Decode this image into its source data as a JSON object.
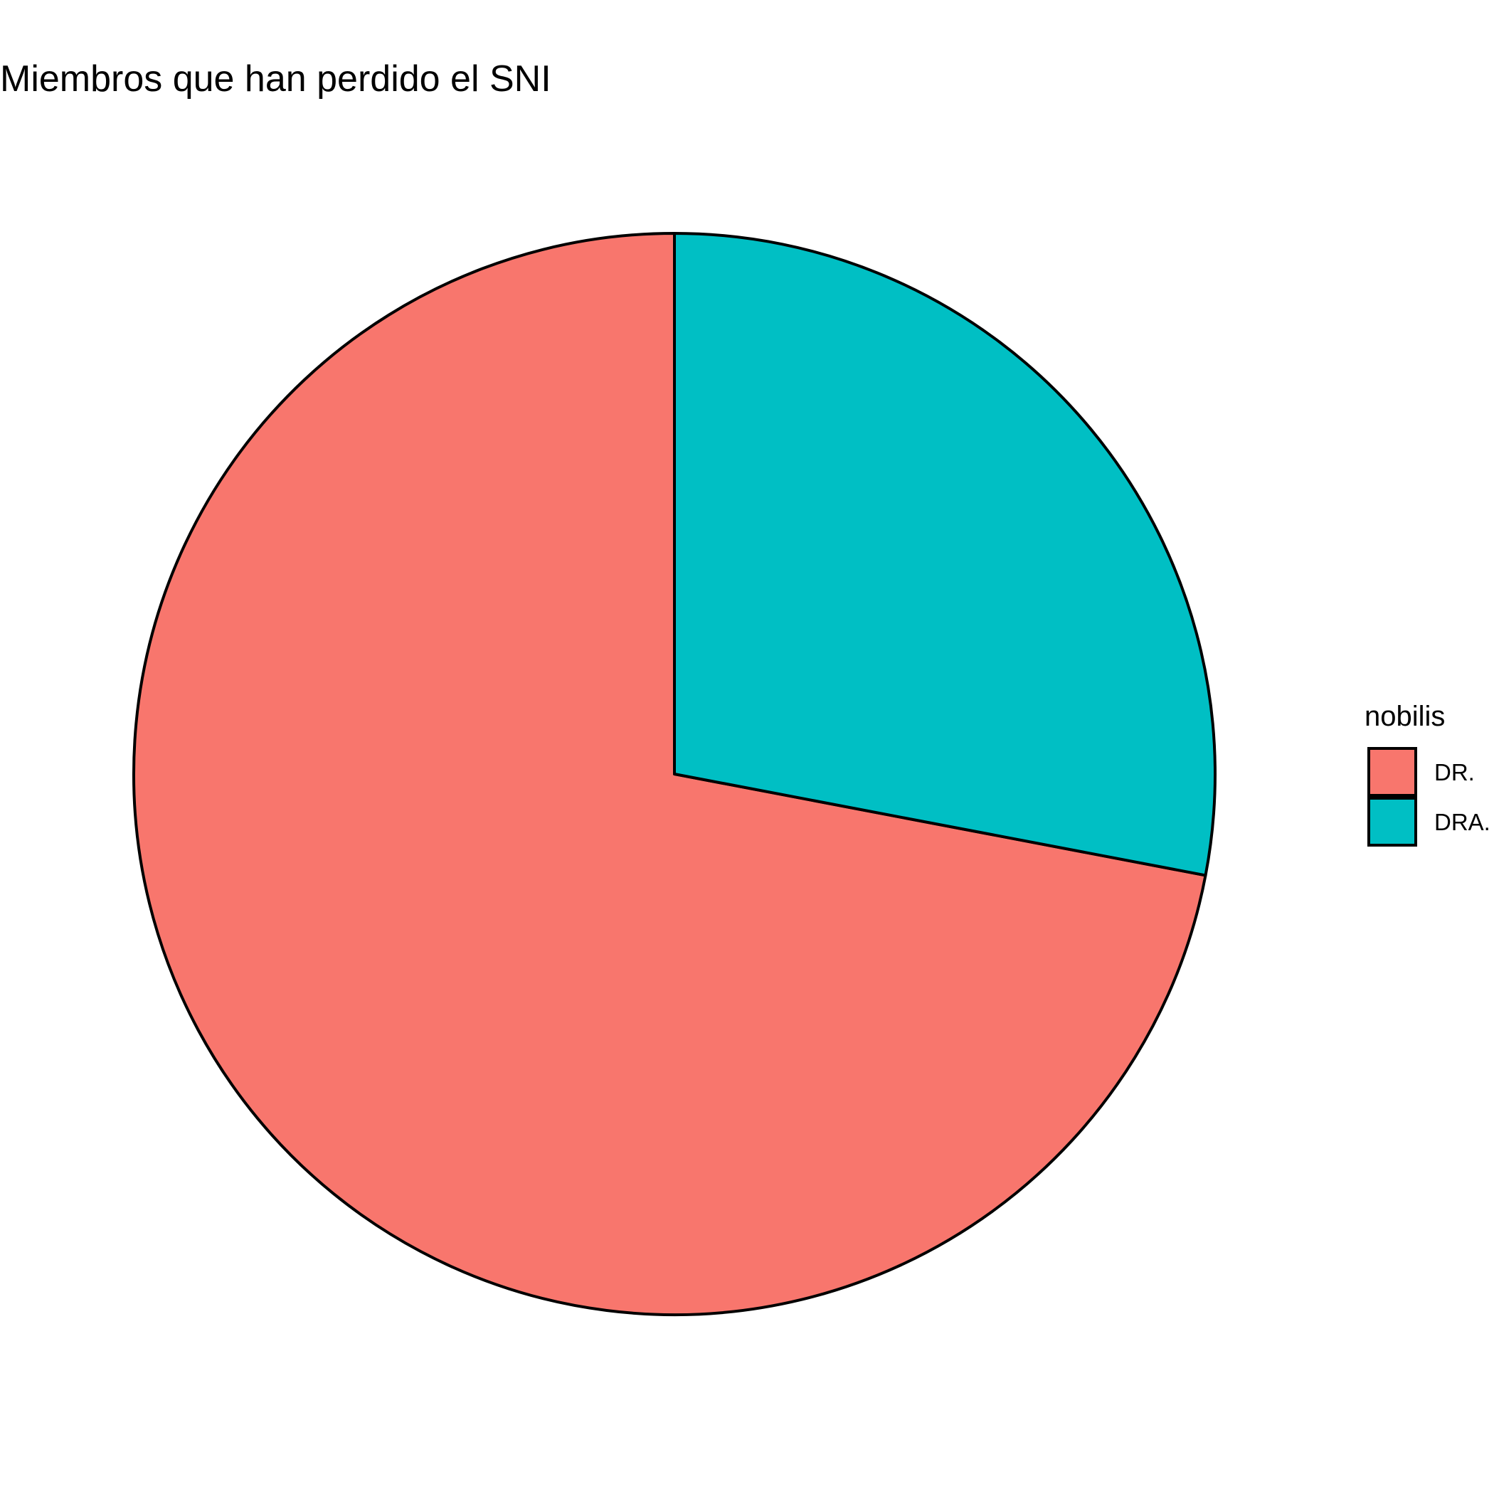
{
  "chart_data": {
    "type": "pie",
    "title": "Miembros que han perdido el SNI",
    "legend": {
      "title": "nobilis",
      "placement": "right"
    },
    "categories": [
      "DR.",
      "DRA."
    ],
    "values": [
      72,
      28
    ],
    "colors": [
      "#F8766D",
      "#00BFC4"
    ],
    "outline_color": "#000000",
    "start": "top",
    "direction": "counterclockwise"
  }
}
